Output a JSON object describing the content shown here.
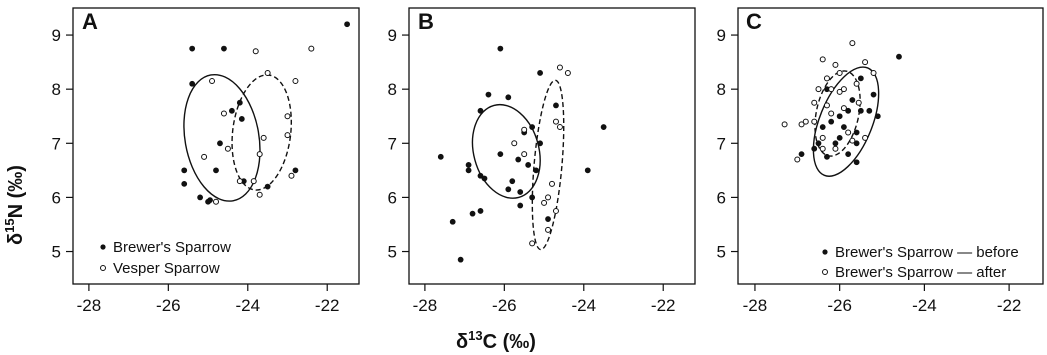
{
  "chart_data": [
    {
      "type": "scatter",
      "panel": "A",
      "xlim": [
        -28.4,
        -21.2
      ],
      "ylim": [
        4.4,
        9.5
      ],
      "xticks": [
        -28,
        -26,
        -24,
        -22
      ],
      "yticks": [
        5,
        6,
        7,
        8,
        9
      ],
      "legend": "bottom-left",
      "series": [
        {
          "name": "Brewer's Sparrow",
          "marker": "filled",
          "points": [
            [
              -25.4,
              8.75
            ],
            [
              -24.6,
              8.75
            ],
            [
              -25.4,
              8.1
            ],
            [
              -24.4,
              7.6
            ],
            [
              -24.2,
              7.75
            ],
            [
              -24.15,
              7.45
            ],
            [
              -24.7,
              7.0
            ],
            [
              -24.8,
              6.5
            ],
            [
              -25.6,
              6.5
            ],
            [
              -25.6,
              6.25
            ],
            [
              -25.2,
              6.0
            ],
            [
              -24.95,
              5.95
            ],
            [
              -25.0,
              5.92
            ],
            [
              -24.1,
              6.3
            ],
            [
              -23.5,
              6.2
            ],
            [
              -22.8,
              6.5
            ],
            [
              -21.5,
              9.2
            ]
          ]
        },
        {
          "name": "Vesper Sparrow",
          "marker": "open",
          "points": [
            [
              -24.9,
              8.15
            ],
            [
              -23.8,
              8.7
            ],
            [
              -23.5,
              8.3
            ],
            [
              -22.8,
              8.15
            ],
            [
              -22.4,
              8.75
            ],
            [
              -23.0,
              7.5
            ],
            [
              -23.0,
              7.15
            ],
            [
              -23.6,
              7.1
            ],
            [
              -23.7,
              6.8
            ],
            [
              -24.5,
              6.9
            ],
            [
              -24.2,
              6.3
            ],
            [
              -23.85,
              6.3
            ],
            [
              -22.9,
              6.4
            ],
            [
              -23.7,
              6.05
            ],
            [
              -24.8,
              5.92
            ],
            [
              -25.1,
              6.75
            ],
            [
              -24.6,
              7.55
            ]
          ]
        }
      ],
      "ellipses": [
        {
          "series": "Brewer's Sparrow",
          "style": "solid",
          "cx": -24.65,
          "cy": 7.1,
          "rx": 0.93,
          "ry": 1.18,
          "rot": -10
        },
        {
          "series": "Vesper Sparrow",
          "style": "dashed",
          "cx": -23.65,
          "cy": 7.2,
          "rx": 0.73,
          "ry": 1.07,
          "rot": 7
        }
      ]
    },
    {
      "type": "scatter",
      "panel": "B",
      "xlim": [
        -28.4,
        -21.2
      ],
      "ylim": [
        4.4,
        9.5
      ],
      "xticks": [
        -28,
        -26,
        -24,
        -22
      ],
      "yticks": [
        5,
        6,
        7,
        8,
        9
      ],
      "series": [
        {
          "name": "Brewer's Sparrow",
          "marker": "filled",
          "points": [
            [
              -26.1,
              8.75
            ],
            [
              -25.1,
              8.3
            ],
            [
              -26.4,
              7.9
            ],
            [
              -25.9,
              7.85
            ],
            [
              -26.6,
              7.6
            ],
            [
              -24.7,
              7.7
            ],
            [
              -25.5,
              7.2
            ],
            [
              -25.3,
              7.3
            ],
            [
              -23.5,
              7.3
            ],
            [
              -25.1,
              7.0
            ],
            [
              -26.1,
              6.8
            ],
            [
              -25.65,
              6.7
            ],
            [
              -25.4,
              6.6
            ],
            [
              -27.6,
              6.75
            ],
            [
              -26.9,
              6.6
            ],
            [
              -26.9,
              6.5
            ],
            [
              -26.6,
              6.4
            ],
            [
              -26.5,
              6.35
            ],
            [
              -25.8,
              6.3
            ],
            [
              -25.9,
              6.15
            ],
            [
              -25.6,
              6.1
            ],
            [
              -25.3,
              6.0
            ],
            [
              -25.6,
              5.85
            ],
            [
              -26.6,
              5.75
            ],
            [
              -26.8,
              5.7
            ],
            [
              -23.9,
              6.5
            ],
            [
              -27.3,
              5.55
            ],
            [
              -27.1,
              4.85
            ],
            [
              -24.9,
              5.6
            ],
            [
              -25.2,
              6.5
            ]
          ]
        },
        {
          "name": "Vesper Sparrow",
          "marker": "open",
          "points": [
            [
              -24.6,
              8.4
            ],
            [
              -24.4,
              8.3
            ],
            [
              -24.7,
              7.4
            ],
            [
              -24.6,
              7.3
            ],
            [
              -25.5,
              7.25
            ],
            [
              -25.75,
              7.0
            ],
            [
              -25.5,
              6.8
            ],
            [
              -24.9,
              6.0
            ],
            [
              -25.0,
              5.9
            ],
            [
              -24.7,
              5.75
            ],
            [
              -24.9,
              5.4
            ],
            [
              -25.3,
              5.15
            ],
            [
              -24.8,
              6.25
            ]
          ]
        }
      ],
      "ellipses": [
        {
          "series": "Brewer's Sparrow",
          "style": "solid",
          "cx": -25.95,
          "cy": 6.85,
          "rx": 0.82,
          "ry": 0.88,
          "rot": -15
        },
        {
          "series": "Vesper Sparrow",
          "style": "dashed",
          "cx": -24.9,
          "cy": 6.6,
          "rx": 0.35,
          "ry": 1.57,
          "rot": 5
        }
      ]
    },
    {
      "type": "scatter",
      "panel": "C",
      "xlim": [
        -28.4,
        -21.2
      ],
      "ylim": [
        4.4,
        9.5
      ],
      "xticks": [
        -28,
        -26,
        -24,
        -22
      ],
      "yticks": [
        5,
        6,
        7,
        8,
        9
      ],
      "legend": "bottom-right",
      "series": [
        {
          "name": "Brewer's Sparrow — before",
          "marker": "filled",
          "points": [
            [
              -24.6,
              8.6
            ],
            [
              -26.3,
              8.0
            ],
            [
              -25.5,
              8.2
            ],
            [
              -25.7,
              7.8
            ],
            [
              -25.8,
              7.6
            ],
            [
              -26.0,
              7.5
            ],
            [
              -26.2,
              7.4
            ],
            [
              -25.9,
              7.3
            ],
            [
              -26.4,
              7.3
            ],
            [
              -25.6,
              7.2
            ],
            [
              -25.1,
              7.5
            ],
            [
              -25.3,
              7.6
            ],
            [
              -25.6,
              7.0
            ],
            [
              -26.1,
              7.0
            ],
            [
              -26.6,
              6.9
            ],
            [
              -26.9,
              6.8
            ],
            [
              -26.3,
              6.75
            ],
            [
              -25.8,
              6.8
            ],
            [
              -25.5,
              7.6
            ],
            [
              -26.0,
              7.1
            ],
            [
              -25.6,
              6.65
            ],
            [
              -25.2,
              7.9
            ],
            [
              -26.5,
              7.0
            ]
          ]
        },
        {
          "name": "Brewer's Sparrow — after",
          "marker": "open",
          "points": [
            [
              -25.7,
              8.85
            ],
            [
              -26.4,
              8.55
            ],
            [
              -26.1,
              8.45
            ],
            [
              -25.4,
              8.5
            ],
            [
              -26.0,
              8.3
            ],
            [
              -26.3,
              8.2
            ],
            [
              -25.2,
              8.3
            ],
            [
              -26.5,
              8.0
            ],
            [
              -26.0,
              7.95
            ],
            [
              -25.6,
              8.1
            ],
            [
              -26.6,
              7.75
            ],
            [
              -26.3,
              7.7
            ],
            [
              -25.9,
              7.65
            ],
            [
              -25.55,
              7.75
            ],
            [
              -26.6,
              7.4
            ],
            [
              -27.3,
              7.35
            ],
            [
              -26.9,
              7.35
            ],
            [
              -26.2,
              7.55
            ],
            [
              -26.4,
              7.1
            ],
            [
              -25.8,
              7.2
            ],
            [
              -26.1,
              6.9
            ],
            [
              -26.4,
              6.9
            ],
            [
              -25.4,
              7.1
            ],
            [
              -27.0,
              6.7
            ],
            [
              -26.8,
              7.4
            ],
            [
              -25.7,
              7.05
            ],
            [
              -26.2,
              8.0
            ],
            [
              -25.9,
              8.0
            ]
          ]
        }
      ],
      "ellipses": [
        {
          "series": "Brewer's Sparrow — before",
          "style": "solid",
          "cx": -25.85,
          "cy": 7.4,
          "rx": 0.62,
          "ry": 1.07,
          "rot": 22
        },
        {
          "series": "Brewer's Sparrow — after",
          "style": "dashed",
          "cx": -26.05,
          "cy": 7.55,
          "rx": 0.5,
          "ry": 0.8,
          "rot": 12
        }
      ]
    }
  ],
  "labels": {
    "panels": [
      "A",
      "B",
      "C"
    ],
    "ylabel_sup": "15",
    "xlabel_sup": "13",
    "ylabel_delta": "δ",
    "ylabel_element": "N (‰)",
    "xlabel_delta": "δ",
    "xlabel_element": "C (‰)",
    "legendA": [
      "Brewer's Sparrow",
      "Vesper Sparrow"
    ],
    "legendC": [
      "Brewer's Sparrow — before",
      "Brewer's Sparrow — after"
    ]
  },
  "colors": {
    "ink": "#111111",
    "background": "#ffffff"
  }
}
